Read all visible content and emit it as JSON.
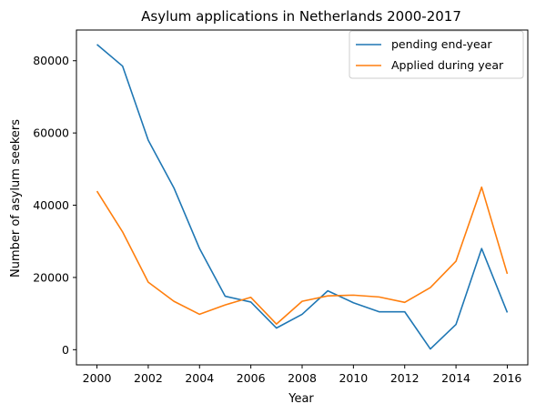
{
  "chart_data": {
    "type": "line",
    "title": "Asylum applications in Netherlands 2000-2017",
    "xlabel": "Year",
    "ylabel": "Number of asylum seekers",
    "x": [
      2000,
      2001,
      2002,
      2003,
      2004,
      2005,
      2006,
      2007,
      2008,
      2009,
      2010,
      2011,
      2012,
      2013,
      2014,
      2015,
      2016
    ],
    "xticks": [
      2000,
      2002,
      2004,
      2006,
      2008,
      2010,
      2012,
      2014,
      2016
    ],
    "yticks": [
      0,
      20000,
      40000,
      60000,
      80000
    ],
    "xlim": [
      1999.2,
      2016.8
    ],
    "ylim": [
      -4200,
      88500
    ],
    "grid": false,
    "legend_position": "top-right",
    "series": [
      {
        "name": "pending end-year",
        "color": "#1f77b4",
        "values": [
          84500,
          78500,
          58000,
          44800,
          28000,
          14800,
          13200,
          6000,
          9800,
          16300,
          13000,
          10500,
          10500,
          200,
          7000,
          28000,
          10300
        ]
      },
      {
        "name": "Applied during year",
        "color": "#ff7f0e",
        "values": [
          43900,
          32600,
          18700,
          13400,
          9800,
          12400,
          14500,
          7100,
          13400,
          14900,
          15100,
          14600,
          13100,
          17200,
          24500,
          45000,
          21000
        ]
      }
    ]
  }
}
